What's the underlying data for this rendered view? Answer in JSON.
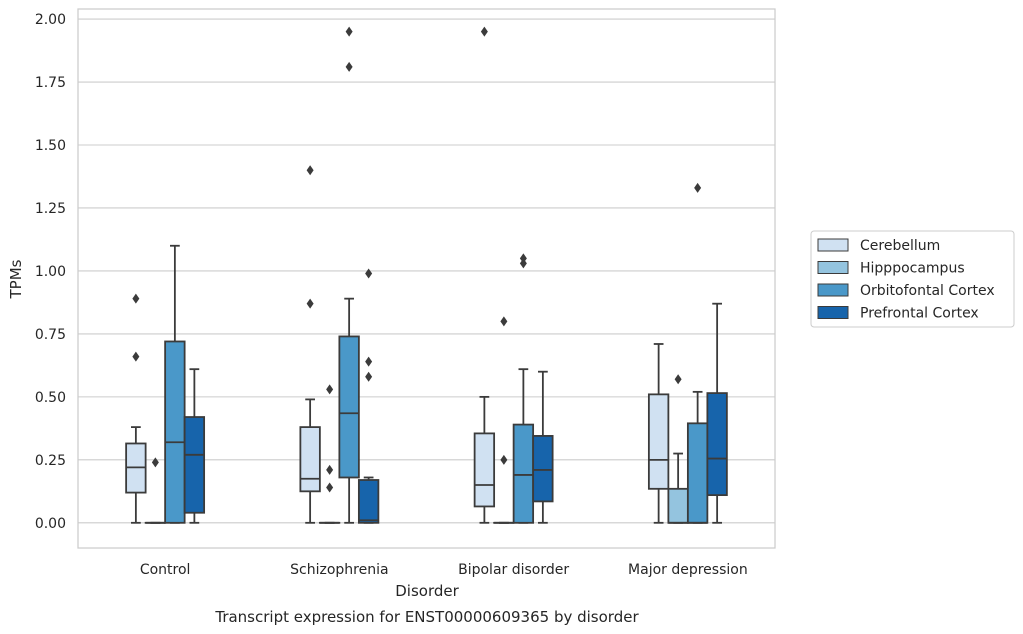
{
  "chart_data": {
    "type": "box",
    "title": "",
    "caption": "Transcript expression for ENST00000609365 by disorder",
    "xlabel": "Disorder",
    "ylabel": "TPMs",
    "ylim": [
      -0.1,
      2.04
    ],
    "yticks": [
      0.0,
      0.25,
      0.5,
      0.75,
      1.0,
      1.25,
      1.5,
      1.75,
      2.0
    ],
    "ytick_labels": [
      "0.00",
      "0.25",
      "0.50",
      "0.75",
      "1.00",
      "1.25",
      "1.50",
      "1.75",
      "2.00"
    ],
    "grid": true,
    "legend_position": "right",
    "categories": [
      "Control",
      "Schizophrenia",
      "Bipolar disorder",
      "Major depression"
    ],
    "series": [
      {
        "name": "Cerebellum",
        "color": "#d0e1f2",
        "boxes": [
          {
            "whisker_low": 0.0,
            "q1": 0.12,
            "median": 0.22,
            "q3": 0.315,
            "whisker_high": 0.38,
            "outliers": [
              0.66,
              0.89
            ]
          },
          {
            "whisker_low": 0.0,
            "q1": 0.125,
            "median": 0.175,
            "q3": 0.38,
            "whisker_high": 0.49,
            "outliers": [
              0.87,
              1.4
            ]
          },
          {
            "whisker_low": 0.0,
            "q1": 0.065,
            "median": 0.15,
            "q3": 0.355,
            "whisker_high": 0.5,
            "outliers": [
              1.95
            ]
          },
          {
            "whisker_low": 0.0,
            "q1": 0.135,
            "median": 0.25,
            "q3": 0.51,
            "whisker_high": 0.71,
            "outliers": []
          }
        ]
      },
      {
        "name": "Hipppocampus",
        "color": "#94c4df",
        "boxes": [
          {
            "whisker_low": 0.0,
            "q1": 0.0,
            "median": 0.0,
            "q3": 0.0,
            "whisker_high": 0.0,
            "outliers": [
              0.24
            ]
          },
          {
            "whisker_low": 0.0,
            "q1": 0.0,
            "median": 0.0,
            "q3": 0.0,
            "whisker_high": 0.0,
            "outliers": [
              0.14,
              0.21,
              0.53
            ]
          },
          {
            "whisker_low": 0.0,
            "q1": 0.0,
            "median": 0.0,
            "q3": 0.0,
            "whisker_high": 0.0,
            "outliers": [
              0.25,
              0.8
            ]
          },
          {
            "whisker_low": 0.0,
            "q1": 0.0,
            "median": 0.0,
            "q3": 0.135,
            "whisker_high": 0.275,
            "outliers": [
              0.57
            ]
          }
        ]
      },
      {
        "name": "Orbitofontal Cortex",
        "color": "#4a98c9",
        "boxes": [
          {
            "whisker_low": 0.0,
            "q1": 0.0,
            "median": 0.32,
            "q3": 0.72,
            "whisker_high": 1.1,
            "outliers": []
          },
          {
            "whisker_low": 0.0,
            "q1": 0.18,
            "median": 0.435,
            "q3": 0.74,
            "whisker_high": 0.89,
            "outliers": [
              1.81,
              1.95
            ]
          },
          {
            "whisker_low": 0.0,
            "q1": 0.0,
            "median": 0.19,
            "q3": 0.39,
            "whisker_high": 0.61,
            "outliers": [
              1.03,
              1.05
            ]
          },
          {
            "whisker_low": 0.0,
            "q1": 0.0,
            "median": 0.0,
            "q3": 0.395,
            "whisker_high": 0.52,
            "outliers": [
              1.33
            ]
          }
        ]
      },
      {
        "name": "Prefrontal Cortex",
        "color": "#1764ab",
        "boxes": [
          {
            "whisker_low": 0.0,
            "q1": 0.04,
            "median": 0.27,
            "q3": 0.42,
            "whisker_high": 0.61,
            "outliers": []
          },
          {
            "whisker_low": 0.0,
            "q1": 0.0,
            "median": 0.01,
            "q3": 0.17,
            "whisker_high": 0.18,
            "outliers": [
              0.58,
              0.64,
              0.99
            ]
          },
          {
            "whisker_low": 0.0,
            "q1": 0.085,
            "median": 0.21,
            "q3": 0.345,
            "whisker_high": 0.6,
            "outliers": []
          },
          {
            "whisker_low": 0.0,
            "q1": 0.11,
            "median": 0.255,
            "q3": 0.515,
            "whisker_high": 0.87,
            "outliers": []
          }
        ]
      }
    ]
  }
}
